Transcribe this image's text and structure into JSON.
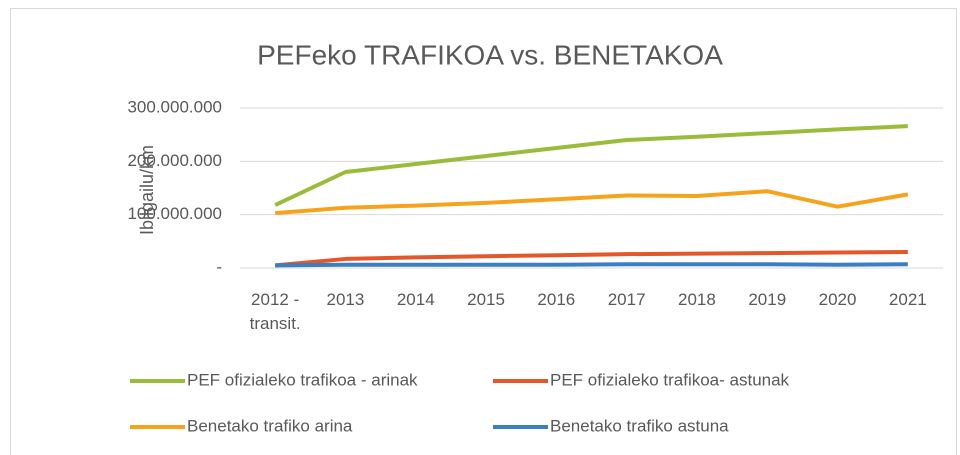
{
  "chart_data": {
    "type": "line",
    "title": "PEFeko TRAFIKOA vs. BENETAKOA",
    "y_label": "Ibilgailu/km",
    "categories": [
      "2012 - transit.",
      "2013",
      "2014",
      "2015",
      "2016",
      "2017",
      "2018",
      "2019",
      "2020",
      "2021"
    ],
    "series": [
      {
        "name": "PEF ofizialeko trafikoa - arinak",
        "color": "#9bbb3b",
        "values": [
          118000000,
          180000000,
          195000000,
          210000000,
          225000000,
          240000000,
          246000000,
          253000000,
          260000000,
          266000000
        ]
      },
      {
        "name": "PEF ofizialeko trafikoa- astunak",
        "color": "#e3582a",
        "values": [
          5000000,
          17000000,
          20000000,
          22000000,
          24000000,
          26000000,
          27000000,
          28000000,
          29000000,
          30000000
        ]
      },
      {
        "name": "Benetako trafiko arina",
        "color": "#f7a21b",
        "values": [
          103000000,
          113000000,
          117000000,
          122000000,
          129000000,
          136000000,
          135000000,
          144000000,
          115000000,
          138000000
        ]
      },
      {
        "name": "Benetako trafiko astuna",
        "color": "#3a7fc1",
        "values": [
          5000000,
          6000000,
          6000000,
          6000000,
          6000000,
          7000000,
          7000000,
          7000000,
          6000000,
          7000000
        ]
      }
    ],
    "ylim": [
      0,
      300000000
    ],
    "yticks": [
      {
        "value": 0,
        "label": "-"
      },
      {
        "value": 100000000,
        "label": "100.000.000"
      },
      {
        "value": 200000000,
        "label": "200.000.000"
      },
      {
        "value": 300000000,
        "label": "300.000.000"
      }
    ],
    "grid": true,
    "legend": "bottom"
  }
}
